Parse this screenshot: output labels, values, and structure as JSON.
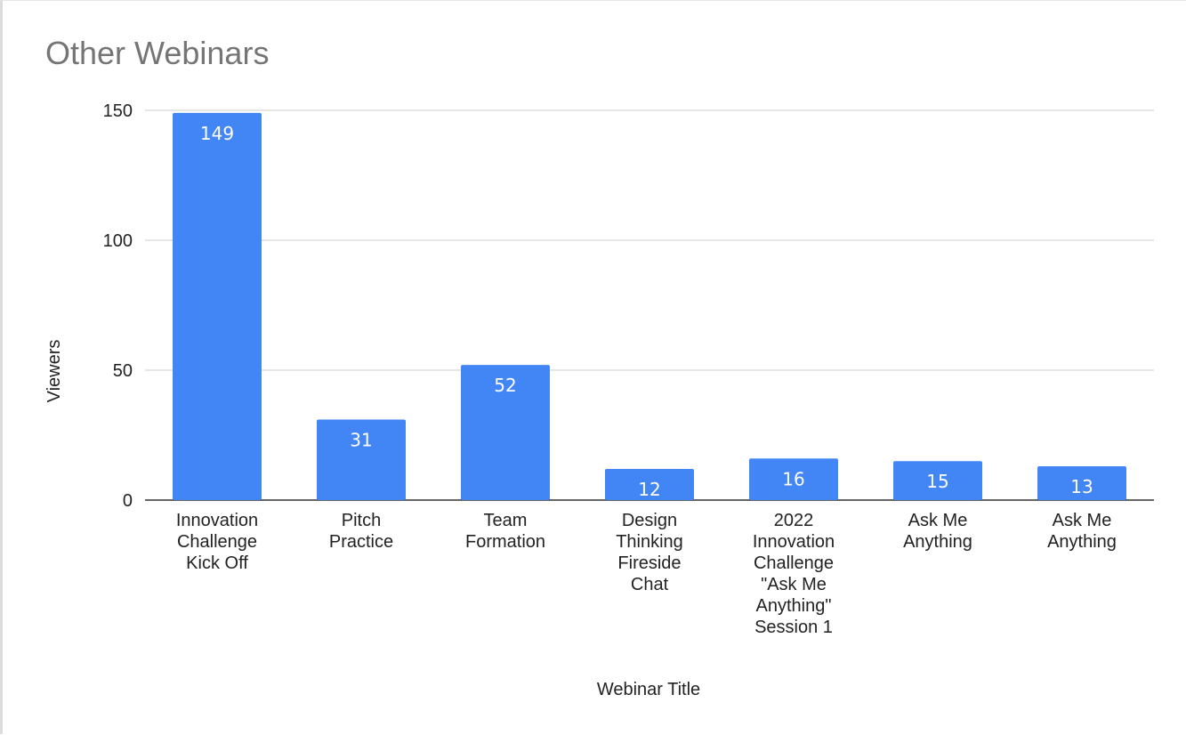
{
  "chart_data": {
    "type": "bar",
    "title": "Other Webinars",
    "xlabel": "Webinar Title",
    "ylabel": "Viewers",
    "categories": [
      [
        "Innovation",
        "Challenge",
        "Kick Off"
      ],
      [
        "Pitch",
        "Practice"
      ],
      [
        "Team",
        "Formation"
      ],
      [
        "Design",
        "Thinking",
        "Fireside",
        "Chat"
      ],
      [
        "2022",
        "Innovation",
        "Challenge",
        "\"Ask Me",
        "Anything\"",
        "Session 1"
      ],
      [
        "Ask Me",
        "Anything"
      ],
      [
        "Ask Me",
        "Anything"
      ]
    ],
    "values": [
      149,
      31,
      52,
      12,
      16,
      15,
      13
    ],
    "data_labels": [
      "149",
      "31",
      "52",
      "12",
      "16",
      "15",
      "13"
    ],
    "ylim": [
      0,
      150
    ],
    "yticks": [
      0,
      50,
      100,
      150
    ],
    "ytick_labels": [
      "0",
      "50",
      "100",
      "150"
    ],
    "grid": true,
    "legend": "none",
    "bar_color": "#4285f4",
    "gridline_color": "#cccccc",
    "baseline_color": "#333333"
  }
}
